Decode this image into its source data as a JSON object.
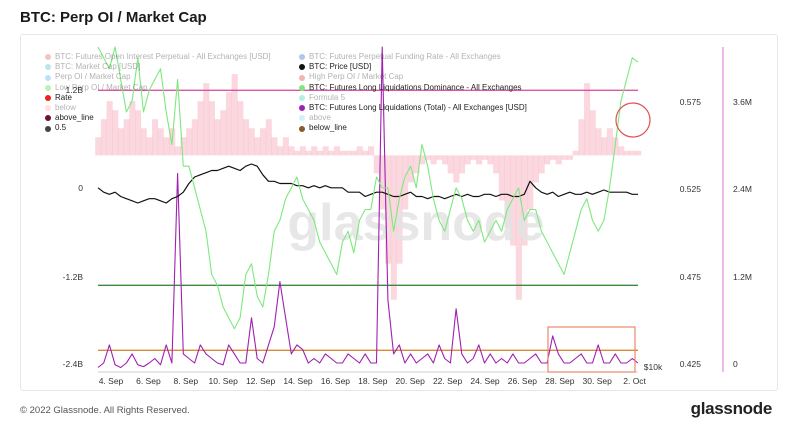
{
  "page": {
    "title": "BTC: Perp OI / Market Cap",
    "copyright": "© 2022 Glassnode. All Rights Reserved.",
    "brand": "glassnode",
    "watermark": "glassnode"
  },
  "legend": {
    "col1": [
      {
        "label": "BTC: Futures Open Interest Perpetual - All Exchanges [USD]",
        "color": "#e05a4f",
        "faded": true
      },
      {
        "label": "BTC: Market Cap [USD]",
        "color": "#3fb6c9",
        "faded": true
      },
      {
        "label": "Perp OI / Market Cap",
        "color": "#3fa9f5",
        "faded": true
      },
      {
        "label": "Low Perp OI / Market Cap",
        "color": "#44dd22",
        "faded": true
      },
      {
        "label": "Rate",
        "color": "#f0211d",
        "faded": false
      },
      {
        "label": "below",
        "color": "#f7a8b8",
        "faded": true
      },
      {
        "label": "above_line",
        "color": "#6d0f3b",
        "faded": false
      },
      {
        "label": "0.5",
        "color": "#3a4a3a",
        "faded": false
      }
    ],
    "col2": [
      {
        "label": "BTC: Futures Perpetual Funding Rate - All Exchanges",
        "color": "#1f5fbf",
        "faded": true
      },
      {
        "label": "BTC: Price [USD]",
        "color": "#111111",
        "faded": false
      },
      {
        "label": "High Perp OI / Market Cap",
        "color": "#e02a2a",
        "faded": true
      },
      {
        "label": "BTC: Futures Long Liquidations Dominance - All Exchanges",
        "color": "#7ee87e",
        "faded": false
      },
      {
        "label": "Formula 5",
        "color": "#2fd0b0",
        "faded": true
      },
      {
        "label": "BTC: Futures Long Liquidations (Total) - All Exchanges [USD]",
        "color": "#a020b0",
        "faded": false
      },
      {
        "label": "above",
        "color": "#8ad4e6",
        "faded": true
      },
      {
        "label": "below_line",
        "color": "#8b5a2b",
        "faded": false
      }
    ],
    "overlapped_text": "BTC: Futures Long Liquidations (Total) - All Exchanges [USD]"
  },
  "chart_data": {
    "type": "line",
    "x_ticks": [
      "4. Sep",
      "6. Sep",
      "8. Sep",
      "10. Sep",
      "12. Sep",
      "14. Sep",
      "16. Sep",
      "18. Sep",
      "20. Sep",
      "22. Sep",
      "24. Sep",
      "26. Sep",
      "28. Sep",
      "30. Sep",
      "2. Oct"
    ],
    "y_left_ticks": [
      "1.2B",
      "0",
      "-1.2B",
      "-2.4B"
    ],
    "y_left_range": [
      -2.4,
      1.2
    ],
    "y_price_tick": "$10k",
    "y_ratio_ticks": [
      "0.575",
      "0.525",
      "0.475",
      "0.425"
    ],
    "y_ratio_range": [
      0.425,
      0.575
    ],
    "y_liq_ticks": [
      "3.6M",
      "2.4M",
      "1.2M",
      "0"
    ],
    "y_liq_range": [
      0,
      3.6
    ],
    "reference_lines": {
      "above_line": 0.555,
      "below_line": 0.435,
      "mid_line": 0.465,
      "color_above": "#e0559f",
      "color_below": "#d98a3a",
      "color_mid": "#3d8a3d"
    },
    "series": [
      {
        "name": "BTC: Futures Long Liquidations Dominance - All Exchanges",
        "axis": "ratio",
        "color": "#7ee87e",
        "values": [
          0.575,
          0.57,
          0.565,
          0.575,
          0.56,
          0.545,
          0.55,
          0.57,
          0.545,
          0.555,
          0.56,
          0.565,
          0.545,
          0.53,
          0.56,
          0.52,
          0.52,
          0.51,
          0.5,
          0.49,
          0.47,
          0.465,
          0.455,
          0.45,
          0.445,
          0.45,
          0.47,
          0.475,
          0.46,
          0.455,
          0.47,
          0.49,
          0.495,
          0.505,
          0.51,
          0.515,
          0.505,
          0.5,
          0.495,
          0.485,
          0.48,
          0.475,
          0.47,
          0.485,
          0.49,
          0.48,
          0.495,
          0.5,
          0.5,
          0.515,
          0.51,
          0.51,
          0.49,
          0.505,
          0.515,
          0.52,
          0.51,
          0.53,
          0.52,
          0.505,
          0.495,
          0.49,
          0.5,
          0.51,
          0.505,
          0.495,
          0.49,
          0.495,
          0.485,
          0.49,
          0.495,
          0.49,
          0.5,
          0.505,
          0.51,
          0.495,
          0.5,
          0.5,
          0.49,
          0.485,
          0.48,
          0.475,
          0.47,
          0.48,
          0.49,
          0.5,
          0.505,
          0.495,
          0.49,
          0.495,
          0.51,
          0.53,
          0.55,
          0.56,
          0.57,
          0.568
        ]
      },
      {
        "name": "BTC: Price [USD]",
        "axis": "price",
        "color": "#111111",
        "values": [
          0.51,
          0.508,
          0.507,
          0.508,
          0.506,
          0.505,
          0.504,
          0.503,
          0.504,
          0.505,
          0.505,
          0.504,
          0.503,
          0.505,
          0.506,
          0.508,
          0.512,
          0.515,
          0.516,
          0.517,
          0.518,
          0.518,
          0.519,
          0.52,
          0.519,
          0.518,
          0.52,
          0.521,
          0.52,
          0.516,
          0.513,
          0.513,
          0.512,
          0.512,
          0.512,
          0.511,
          0.511,
          0.51,
          0.511,
          0.51,
          0.511,
          0.51,
          0.51,
          0.51,
          0.508,
          0.508,
          0.508,
          0.506,
          0.507,
          0.508,
          0.508,
          0.507,
          0.506,
          0.506,
          0.507,
          0.508,
          0.506,
          0.506,
          0.505,
          0.506,
          0.506,
          0.505,
          0.506,
          0.507,
          0.506,
          0.507,
          0.506,
          0.506,
          0.507,
          0.507,
          0.506,
          0.507,
          0.507,
          0.506,
          0.506,
          0.507,
          0.513,
          0.51,
          0.508,
          0.507,
          0.508,
          0.506,
          0.507,
          0.508,
          0.507,
          0.507,
          0.508,
          0.507,
          0.508,
          0.509,
          0.508,
          0.508,
          0.508,
          0.508,
          0.507,
          0.507
        ]
      },
      {
        "name": "BTC: Futures Long Liquidations (Total) - All Exchanges [USD]",
        "axis": "liq",
        "color": "#a020b0",
        "values": [
          0.05,
          0.1,
          0.3,
          0.08,
          0.05,
          0.1,
          0.2,
          0.08,
          0.06,
          0.1,
          0.15,
          0.08,
          0.3,
          0.1,
          2.2,
          0.2,
          0.15,
          0.1,
          0.3,
          0.2,
          0.15,
          0.1,
          0.08,
          0.3,
          0.2,
          0.1,
          0.1,
          0.6,
          0.15,
          0.1,
          0.3,
          0.5,
          1.0,
          0.6,
          0.2,
          0.3,
          0.25,
          0.1,
          0.15,
          0.1,
          0.2,
          0.15,
          0.1,
          0.1,
          0.2,
          0.15,
          0.1,
          0.2,
          0.1,
          0.1,
          3.6,
          0.8,
          0.2,
          0.3,
          0.1,
          0.2,
          0.1,
          0.15,
          0.2,
          0.1,
          0.3,
          0.15,
          0.1,
          0.7,
          0.2,
          0.1,
          0.15,
          0.3,
          0.1,
          0.2,
          0.1,
          0.15,
          0.1,
          0.2,
          0.1,
          0.1,
          0.15,
          0.2,
          0.1,
          0.1,
          0.4,
          0.2,
          0.1,
          0.1,
          0.15,
          0.2,
          0.1,
          0.1,
          0.3,
          0.1,
          0.1,
          0.2,
          0.1,
          0.1,
          0.15,
          0.1
        ]
      },
      {
        "name": "BTC: Futures Perpetual Funding Rate - All Exchanges",
        "axis": "left",
        "color": "#f7a8b8",
        "values": [
          0.2,
          0.4,
          0.6,
          0.5,
          0.3,
          0.4,
          0.6,
          0.5,
          0.3,
          0.2,
          0.4,
          0.3,
          0.2,
          0.3,
          0.1,
          0.2,
          0.3,
          0.4,
          0.6,
          0.8,
          0.6,
          0.4,
          0.5,
          0.7,
          0.9,
          0.6,
          0.4,
          0.3,
          0.2,
          0.3,
          0.4,
          0.2,
          0.1,
          0.2,
          0.1,
          0.05,
          0.1,
          0.05,
          0.1,
          0.05,
          0.1,
          0.05,
          0.1,
          0.05,
          0.05,
          0.05,
          0.1,
          0.05,
          0.1,
          -0.2,
          -0.6,
          -1.2,
          -1.6,
          -1.2,
          -0.6,
          -0.3,
          -0.2,
          -0.1,
          -0.05,
          -0.1,
          -0.05,
          -0.1,
          -0.2,
          -0.3,
          -0.2,
          -0.1,
          -0.05,
          -0.1,
          -0.05,
          -0.1,
          -0.2,
          -0.5,
          -0.8,
          -1.0,
          -1.6,
          -1.0,
          -0.6,
          -0.3,
          -0.2,
          -0.1,
          -0.05,
          -0.1,
          -0.05,
          -0.05,
          0.05,
          0.4,
          0.8,
          0.5,
          0.3,
          0.2,
          0.3,
          0.2,
          0.1,
          0.05,
          0.05,
          0.05
        ]
      }
    ]
  }
}
